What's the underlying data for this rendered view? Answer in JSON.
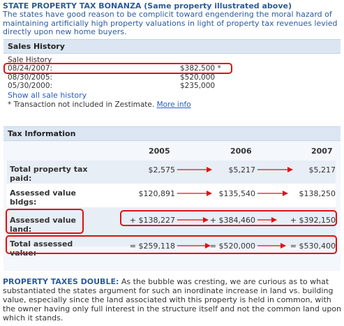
{
  "header": {
    "title": "STATE PROPERTY TAX BONANZA (Same property illustrated above)",
    "intro": "The states have good reason to be complicit toward engendering the moral hazard of maintaining artificially high property valuations in light of property tax revenues levied directly upon new home buyers."
  },
  "sales_history": {
    "heading": "Sales History",
    "subheading": "Sale History",
    "rows": [
      {
        "date": "08/24/2007:",
        "price": "$382,500 *"
      },
      {
        "date": "08/30/2005:",
        "price": "$520,000"
      },
      {
        "date": "05/30/2000:",
        "price": "$235,000"
      }
    ],
    "show_all": "Show all sale history",
    "footnote": "* Transaction not included in Zestimate.",
    "more_info": "More info"
  },
  "tax_info": {
    "heading": "Tax Information",
    "years": [
      "2005",
      "2006",
      "2007"
    ],
    "rows": [
      {
        "label": "Total property tax paid:",
        "values": [
          "$2,575",
          "$5,217",
          "$5,217"
        ]
      },
      {
        "label": "Assessed value bldgs:",
        "values": [
          "$120,891",
          "$135,540",
          "$138,250"
        ]
      },
      {
        "label": "Assessed value land:",
        "values": [
          "+ $138,227",
          "+ $384,460",
          "+ $392,150"
        ]
      },
      {
        "label": "Total assessed value:",
        "values": [
          "= $259,118",
          "= $520,000",
          "= $530,400"
        ]
      }
    ]
  },
  "footer": {
    "lead": "PROPERTY TAXES DOUBLE:",
    "text": "As the bubble was cresting, we are curious as to what substantiated the states argument for such an inordinate increase in land vs. building value, especially since the land associated with this property is held in common, with the owner having only full interest in the structure itself and not the common land upon which it stands."
  },
  "colors": {
    "title_blue": "#2a5b9c",
    "link_blue": "#2a5bc5",
    "highlight_red": "#e01010",
    "panel_head": "#dbe6f2"
  }
}
